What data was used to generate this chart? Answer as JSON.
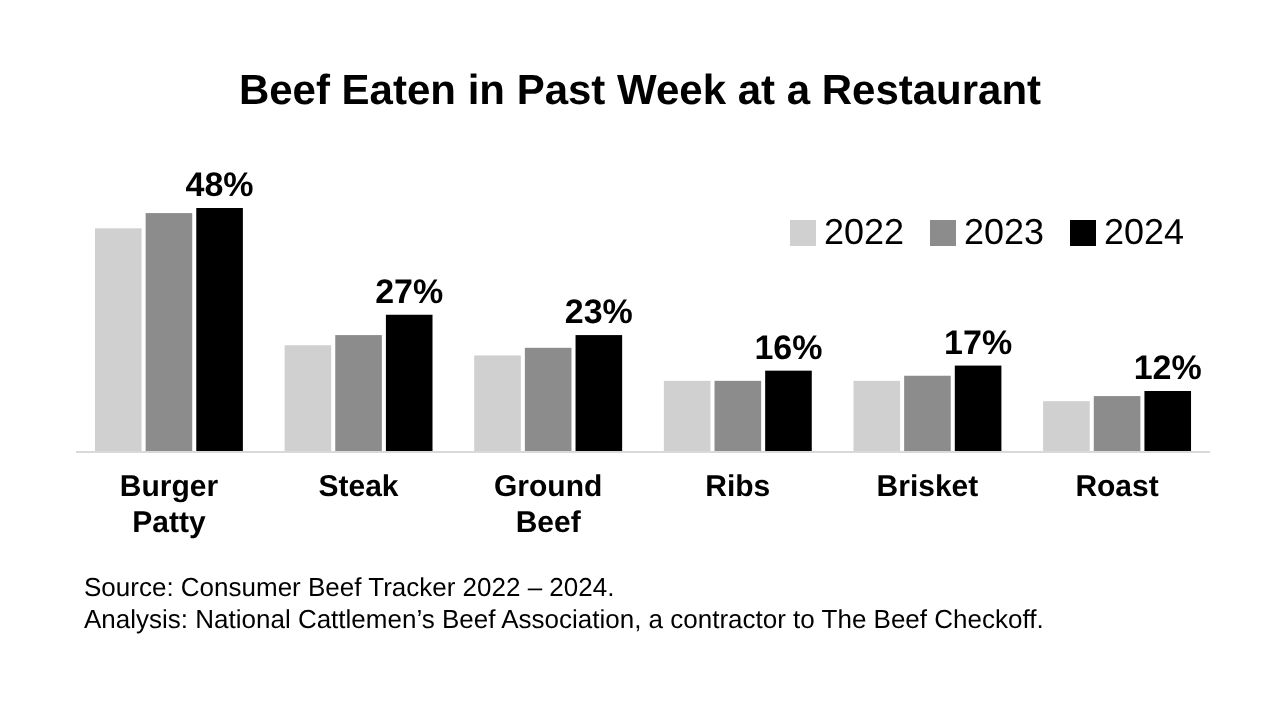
{
  "chart_data": {
    "type": "bar",
    "title": "Beef Eaten in Past Week at a Restaurant",
    "categories": [
      "Burger Patty",
      "Steak",
      "Ground Beef",
      "Ribs",
      "Brisket",
      "Roast"
    ],
    "series": [
      {
        "name": "2022",
        "color": "#d0d0d0",
        "values": [
          44,
          21,
          19,
          14,
          14,
          10
        ]
      },
      {
        "name": "2023",
        "color": "#8c8c8c",
        "values": [
          47,
          23,
          20.5,
          14,
          15,
          11
        ]
      },
      {
        "name": "2024",
        "color": "#000000",
        "values": [
          48,
          27,
          23,
          16,
          17,
          12
        ],
        "value_labels": [
          "48%",
          "27%",
          "23%",
          "16%",
          "17%",
          "12%"
        ]
      }
    ],
    "legend": "top right",
    "annotations": [
      "Source: Consumer Beef Tracker 2022 – 2024.",
      "Analysis: National Cattlemen’s Beef Association, a contractor to The Beef Checkoff."
    ]
  }
}
